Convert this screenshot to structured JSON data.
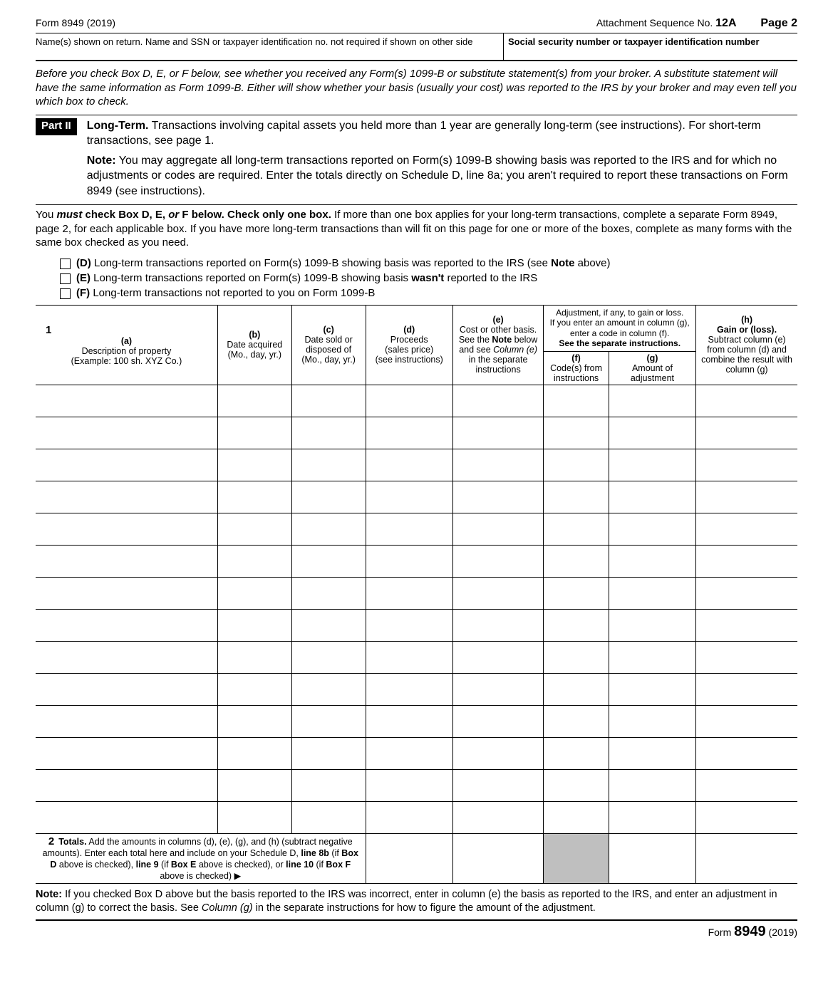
{
  "header": {
    "form_title": "Form 8949 (2019)",
    "attachment_label": "Attachment Sequence No.",
    "attachment_no": "12A",
    "page_label": "Page",
    "page_no": "2"
  },
  "name_ssn": {
    "name_label": "Name(s) shown on return. Name and SSN or taxpayer identification no. not required if shown on other side",
    "ssn_label": "Social security number or taxpayer identification number"
  },
  "intro": "Before you check Box D, E, or F below, see whether you received any Form(s) 1099-B or substitute statement(s) from your broker. A substitute statement will have the same information as Form 1099-B. Either will show whether your basis (usually your cost) was reported to the IRS by your broker and may even tell you which box to check.",
  "part2": {
    "badge": "Part II",
    "long_term": "Long-Term.",
    "long_term_text": " Transactions involving capital assets you held more than 1 year are generally long-term (see instructions). For short-term transactions, see page 1.",
    "note_label": "Note:",
    "note_text": " You may aggregate all long-term transactions reported on Form(s) 1099-B showing basis was reported to the IRS and for which no adjustments or codes are required. Enter the totals directly on Schedule D, line 8a; you aren't required to report these transactions on Form 8949 (see instructions)."
  },
  "must": {
    "prefix": "You ",
    "must": "must",
    "mid": " check Box D, E, ",
    "or": "or",
    "suffix": " F below. Check only one box.",
    "rest": " If more than one box applies for your long-term transactions, complete a separate Form 8949, page 2, for each applicable box. If you have more long-term transactions than will fit on this page for one or more of the boxes, complete as many forms with the same box checked as you need."
  },
  "checkboxes": {
    "d_label": "(D)",
    "d_text": " Long-term transactions reported on Form(s) 1099-B showing basis was reported to the IRS (see ",
    "d_note": "Note",
    "d_after": " above)",
    "e_label": "(E)",
    "e_text": " Long-term transactions reported on Form(s) 1099-B showing basis ",
    "e_wasnt": "wasn't",
    "e_after": " reported to the IRS",
    "f_label": "(F)",
    "f_text": " Long-term transactions not reported to you on Form 1099-B"
  },
  "columns": {
    "row1": "1",
    "a_head": "(a)",
    "a_sub1": "Description of property",
    "a_sub2": "(Example: 100 sh. XYZ Co.)",
    "b_head": "(b)",
    "b_sub1": "Date acquired",
    "b_sub2": "(Mo., day, yr.)",
    "c_head": "(c)",
    "c_sub1": "Date sold or disposed of",
    "c_sub2": "(Mo., day, yr.)",
    "d_head": "(d)",
    "d_sub1": "Proceeds",
    "d_sub2": "(sales price)",
    "d_sub3": "(see instructions)",
    "e_head": "(e)",
    "e_sub1": "Cost or other basis.",
    "e_sub2": "See the ",
    "e_note": "Note",
    "e_sub3": " below",
    "e_sub4": "and see ",
    "e_col": "Column (e)",
    "e_sub5": " in the separate instructions",
    "fg_top1": "Adjustment, if any, to gain or loss.",
    "fg_top2": "If you enter an amount in column (g),",
    "fg_top3": "enter a code in column (f).",
    "fg_top4": "See the separate instructions.",
    "f_head": "(f)",
    "f_sub": "Code(s) from instructions",
    "g_head": "(g)",
    "g_sub": "Amount of adjustment",
    "h_head": "(h)",
    "h_sub1": "Gain or (loss).",
    "h_sub2": "Subtract column (e) from column (d) and combine the result with column (g)"
  },
  "data_rows": 14,
  "totals": {
    "num": "2",
    "label": "Totals.",
    "text1": " Add the amounts in columns (d), (e), (g), and (h) (subtract negative amounts). Enter each total here and include on your Schedule D, ",
    "l8b": "line 8b",
    "t2": " (if ",
    "bD": "Box D",
    "t3": " above is checked), ",
    "l9": "line 9",
    "t4": " (if ",
    "bE": "Box E",
    "t5": " above is checked), or ",
    "l10": "line 10",
    "t6": " (if ",
    "bF": "Box F",
    "t7": " above is checked) ▶"
  },
  "bottom_note": {
    "label": "Note:",
    "t1": " If you checked Box D above but the basis reported to the IRS was incorrect, enter in column (e) the basis as reported to the IRS, and enter an adjustment in column (g) to correct the basis. See ",
    "col_g": "Column (g)",
    "t2": " in the separate instructions for how to figure the amount of the adjustment."
  },
  "footer": {
    "form_label": "Form",
    "form_no": "8949",
    "year": "(2019)"
  }
}
